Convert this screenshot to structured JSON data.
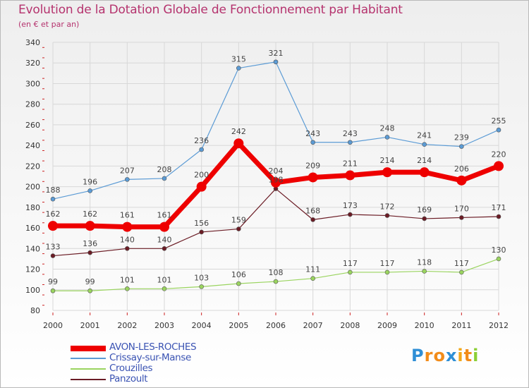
{
  "chart_data": {
    "type": "line",
    "title": "Evolution de la Dotation Globale de Fonctionnement par Habitant",
    "subtitle": "(en € et par an)",
    "xlabel": "",
    "ylabel": "",
    "categories": [
      "2000",
      "2001",
      "2002",
      "2003",
      "2004",
      "2005",
      "2006",
      "2007",
      "2008",
      "2009",
      "2010",
      "2011",
      "2012"
    ],
    "ylim": [
      80,
      340
    ],
    "yticks": [
      80,
      100,
      120,
      140,
      160,
      180,
      200,
      220,
      240,
      260,
      280,
      300,
      320,
      340
    ],
    "grid": true,
    "legend_position": "bottom-left",
    "series": [
      {
        "name": "Crissay-sur-Manse",
        "color": "#5b9bd5",
        "values": [
          188,
          196,
          207,
          208,
          236,
          315,
          321,
          243,
          243,
          248,
          241,
          239,
          255
        ]
      },
      {
        "name": "Crouzilles",
        "color": "#9ad45f",
        "values": [
          99,
          99,
          101,
          101,
          103,
          106,
          108,
          111,
          117,
          117,
          118,
          117,
          130
        ]
      },
      {
        "name": "Panzoult",
        "color": "#6b1c25",
        "values": [
          133,
          136,
          140,
          140,
          156,
          159,
          198,
          168,
          173,
          172,
          169,
          170,
          171
        ]
      },
      {
        "name": "AVON-LES-ROCHES",
        "color": "#ee0000",
        "values": [
          162,
          162,
          161,
          161,
          200,
          242,
          204,
          209,
          211,
          214,
          214,
          206,
          220
        ]
      }
    ]
  },
  "legend": {
    "items": [
      {
        "label": "AVON-LES-ROCHES",
        "color": "#ee0000"
      },
      {
        "label": "Crissay-sur-Manse",
        "color": "#5b9bd5"
      },
      {
        "label": "Crouzilles",
        "color": "#9ad45f"
      },
      {
        "label": "Panzoult",
        "color": "#6b1c25"
      }
    ]
  },
  "logo": {
    "letters": [
      "P",
      "r",
      "o",
      "x",
      "i",
      "t",
      "i"
    ],
    "colors": [
      "#2f8fd6",
      "#f28c1a",
      "#f28c1a",
      "#2f8fd6",
      "#f2a81a",
      "#f28c1a",
      "#8ccf35"
    ]
  }
}
